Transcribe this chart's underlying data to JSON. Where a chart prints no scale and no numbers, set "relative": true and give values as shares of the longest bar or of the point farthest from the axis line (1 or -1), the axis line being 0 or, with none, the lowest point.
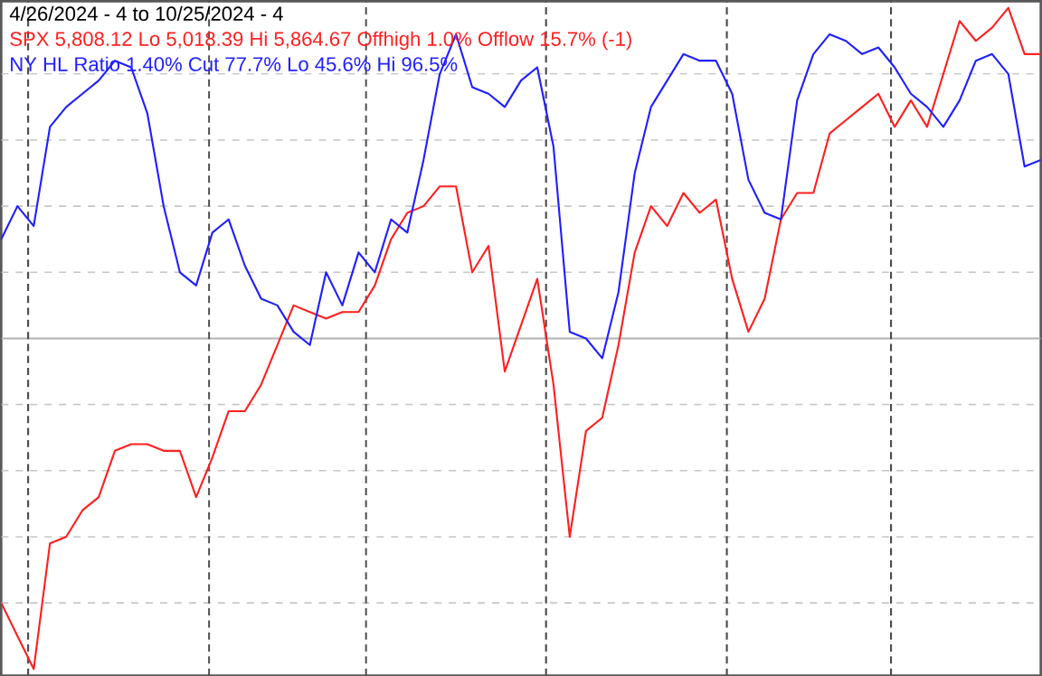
{
  "chart_data": {
    "type": "line",
    "relative": true,
    "title": "4/26/2024 - 4 to 10/25/2024 - 4",
    "legend": "top left",
    "grid": true,
    "ref_lines": [
      {
        "axis": "y",
        "value": 0.5,
        "color": "#b2b2b2"
      }
    ],
    "categories": [
      null,
      null,
      null,
      null,
      null,
      null,
      null,
      null,
      null,
      null,
      null,
      null,
      null,
      null,
      null,
      null,
      null,
      null,
      null,
      null,
      null,
      null,
      null,
      null,
      null,
      null,
      null,
      null,
      null,
      null,
      null,
      null,
      null,
      null,
      null,
      null,
      null,
      null,
      null,
      null,
      null,
      null,
      null,
      null,
      null,
      null,
      null,
      null,
      null,
      null,
      null,
      null,
      null,
      null,
      null,
      null,
      null,
      null,
      null,
      null,
      null,
      null,
      null,
      null,
      null
    ],
    "series": [
      {
        "name": "SPX 5,808.12 Lo 5,018.39 Hi 5,864.67 Offhigh 1.0% Offlow 15.7% (-1)",
        "color": "#ff2020",
        "values": [
          0.1,
          0.05,
          0.0,
          0.19,
          0.2,
          0.24,
          0.26,
          0.33,
          0.34,
          0.34,
          0.33,
          0.33,
          0.26,
          0.32,
          0.39,
          0.39,
          0.43,
          0.49,
          0.55,
          0.54,
          0.53,
          0.54,
          0.54,
          0.58,
          0.65,
          0.69,
          0.7,
          0.73,
          0.73,
          0.6,
          0.64,
          0.45,
          0.52,
          0.59,
          0.43,
          0.2,
          0.36,
          0.38,
          0.49,
          0.63,
          0.7,
          0.67,
          0.72,
          0.69,
          0.71,
          0.59,
          0.51,
          0.56,
          0.68,
          0.72,
          0.72,
          0.81,
          0.83,
          0.85,
          0.87,
          0.82,
          0.86,
          0.82,
          0.9,
          0.98,
          0.95,
          0.97,
          1.0,
          0.93,
          0.93
        ]
      },
      {
        "name": "NY HL Ratio 1.40% Cut 77.7% Lo 45.6% Hi 96.5%",
        "color": "#2020ff",
        "values": [
          0.65,
          0.7,
          0.67,
          0.82,
          0.85,
          0.87,
          0.89,
          0.92,
          0.91,
          0.84,
          0.7,
          0.6,
          0.58,
          0.66,
          0.68,
          0.61,
          0.56,
          0.55,
          0.51,
          0.49,
          0.6,
          0.55,
          0.63,
          0.6,
          0.68,
          0.66,
          0.77,
          0.9,
          0.96,
          0.88,
          0.87,
          0.85,
          0.89,
          0.91,
          0.79,
          0.51,
          0.5,
          0.47,
          0.57,
          0.75,
          0.85,
          0.89,
          0.93,
          0.92,
          0.92,
          0.87,
          0.74,
          0.69,
          0.68,
          0.86,
          0.93,
          0.96,
          0.95,
          0.93,
          0.94,
          0.91,
          0.87,
          0.85,
          0.82,
          0.86,
          0.92,
          0.93,
          0.9,
          0.76,
          0.77
        ]
      }
    ]
  }
}
